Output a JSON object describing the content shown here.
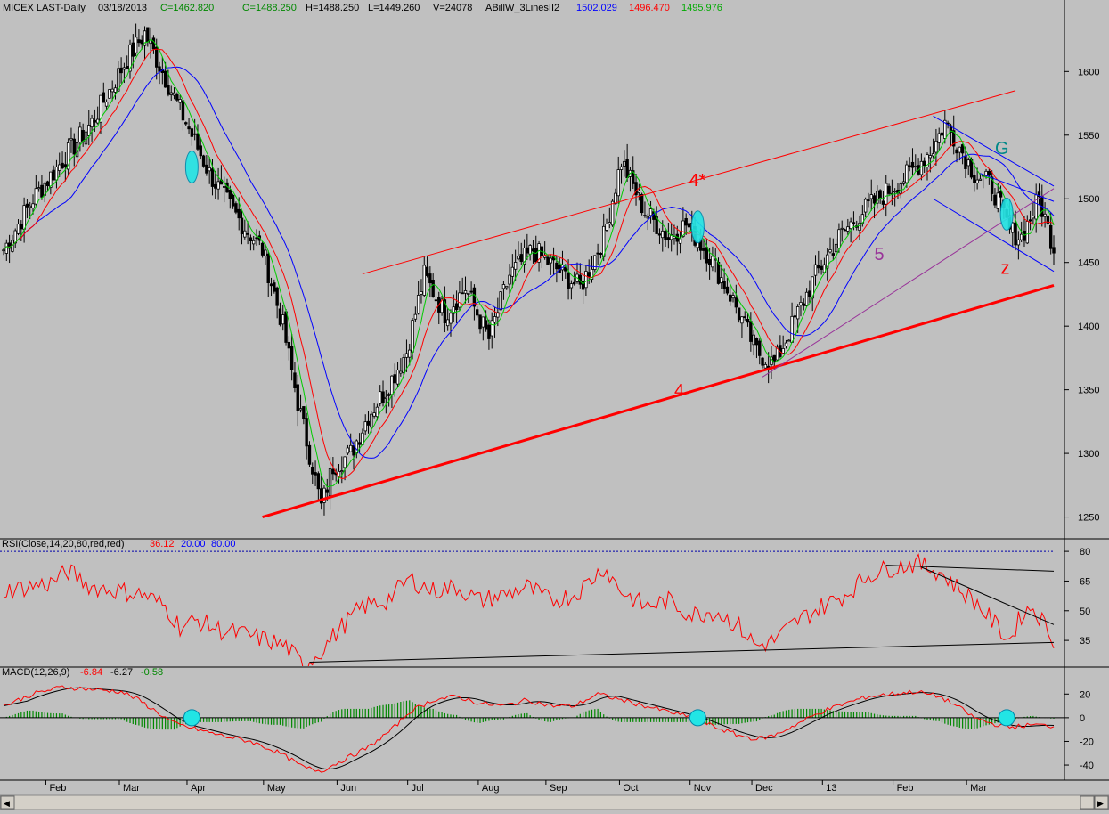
{
  "header": {
    "symbol": "MICEX LAST-Daily",
    "date": "03/18/2013",
    "close": "C=1462.820",
    "open": "O=1488.250",
    "high": "H=1488.250",
    "low": "L=1449.260",
    "volume": "V=24078",
    "indicator": "ABillW_3LinesII2",
    "v_blue": "1502.029",
    "v_red": "1496.470",
    "v_green": "1495.976"
  },
  "colors": {
    "background": "#c0c0c0",
    "panel_bg": "#c0c0c0",
    "ma_blue": "#0000ff",
    "ma_red": "#ff0000",
    "ma_green": "#00cc00",
    "candle": "#000000",
    "trend_red": "#ff0000",
    "channel_blue": "#0000ff",
    "wave_purple": "#993399",
    "highlight_cyan": "#22e5e5",
    "rsi_line": "#ff0000",
    "macd_line": "#000000",
    "signal_line": "#ff0000",
    "histogram": "#008800",
    "guide_blue": "#0000aa"
  },
  "chart_data": [
    {
      "type": "candlestick",
      "panel": "price",
      "ylim": [
        1235,
        1645
      ],
      "yticks": [
        1250,
        1300,
        1350,
        1400,
        1450,
        1500,
        1550,
        1600
      ],
      "x_tick_labels": [
        "Feb",
        "Mar",
        "Apr",
        "May",
        "Jun",
        "Jul",
        "Aug",
        "Sep",
        "Oct",
        "Nov",
        "Dec",
        "13",
        "Feb",
        "Mar"
      ],
      "price_path": [
        [
          0,
          1460
        ],
        [
          10,
          1500
        ],
        [
          20,
          1530
        ],
        [
          30,
          1560
        ],
        [
          42,
          1610
        ],
        [
          48,
          1630
        ],
        [
          55,
          1595
        ],
        [
          62,
          1560
        ],
        [
          70,
          1520
        ],
        [
          78,
          1490
        ],
        [
          88,
          1460
        ],
        [
          95,
          1400
        ],
        [
          100,
          1340
        ],
        [
          105,
          1290
        ],
        [
          108,
          1258
        ],
        [
          112,
          1290
        ],
        [
          118,
          1300
        ],
        [
          124,
          1330
        ],
        [
          130,
          1350
        ],
        [
          137,
          1380
        ],
        [
          143,
          1440
        ],
        [
          150,
          1410
        ],
        [
          157,
          1430
        ],
        [
          165,
          1390
        ],
        [
          172,
          1440
        ],
        [
          180,
          1460
        ],
        [
          188,
          1445
        ],
        [
          196,
          1430
        ],
        [
          204,
          1470
        ],
        [
          210,
          1530
        ],
        [
          218,
          1490
        ],
        [
          226,
          1470
        ],
        [
          232,
          1480
        ],
        [
          240,
          1455
        ],
        [
          248,
          1420
        ],
        [
          256,
          1380
        ],
        [
          262,
          1370
        ],
        [
          268,
          1400
        ],
        [
          276,
          1440
        ],
        [
          284,
          1470
        ],
        [
          292,
          1490
        ],
        [
          300,
          1505
        ],
        [
          308,
          1520
        ],
        [
          316,
          1540
        ],
        [
          320,
          1560
        ],
        [
          324,
          1545
        ],
        [
          330,
          1520
        ],
        [
          336,
          1510
        ],
        [
          342,
          1475
        ],
        [
          346,
          1470
        ],
        [
          352,
          1500
        ],
        [
          357,
          1462
        ]
      ],
      "ma_labels": [
        "ma-blue",
        "ma-red",
        "ma-green"
      ],
      "annotations": [
        {
          "text": "4*",
          "color": "#ff0000"
        },
        {
          "text": "4",
          "color": "#ff0000"
        },
        {
          "text": "5",
          "color": "#993399"
        },
        {
          "text": "G",
          "color": "#008888"
        },
        {
          "text": "z",
          "color": "#ff0000"
        }
      ],
      "trendlines": {
        "support_main": {
          "from": [
            88,
            1250
          ],
          "to": [
            357,
            1432
          ]
        },
        "resistance_upper": {
          "from": [
            122,
            1441
          ],
          "to": [
            344,
            1585
          ]
        },
        "channel_top": {
          "from": [
            316,
            1565
          ],
          "to": [
            357,
            1510
          ]
        },
        "channel_bottom": {
          "from": [
            316,
            1500
          ],
          "to": [
            357,
            1443
          ]
        },
        "wave_line": {
          "from": [
            258,
            1360
          ],
          "to": [
            357,
            1508
          ]
        },
        "g_triangle_top": {
          "from": [
            332,
            1520
          ],
          "to": [
            357,
            1498
          ]
        }
      },
      "highlight_ellipses": [
        {
          "x": 64,
          "y": 1525
        },
        {
          "x": 236,
          "y": 1478
        },
        {
          "x": 341,
          "y": 1488
        }
      ]
    },
    {
      "type": "line",
      "panel": "rsi",
      "title": "RSI(Close,14,20,80,red,red)",
      "values_label": [
        "36.12",
        "20.00",
        "80.00"
      ],
      "ylim": [
        22,
        85
      ],
      "yticks": [
        35,
        50,
        65,
        80
      ],
      "guides": [
        20,
        80
      ],
      "rsi_path": [
        [
          0,
          60
        ],
        [
          8,
          62
        ],
        [
          16,
          64
        ],
        [
          22,
          70
        ],
        [
          30,
          62
        ],
        [
          40,
          60
        ],
        [
          48,
          58
        ],
        [
          55,
          52
        ],
        [
          60,
          42
        ],
        [
          66,
          45
        ],
        [
          74,
          40
        ],
        [
          82,
          38
        ],
        [
          90,
          35
        ],
        [
          96,
          32
        ],
        [
          102,
          22
        ],
        [
          108,
          30
        ],
        [
          115,
          42
        ],
        [
          122,
          52
        ],
        [
          130,
          55
        ],
        [
          138,
          66
        ],
        [
          146,
          60
        ],
        [
          154,
          62
        ],
        [
          162,
          55
        ],
        [
          170,
          58
        ],
        [
          178,
          62
        ],
        [
          186,
          55
        ],
        [
          194,
          58
        ],
        [
          200,
          66
        ],
        [
          204,
          72
        ],
        [
          210,
          60
        ],
        [
          218,
          52
        ],
        [
          226,
          55
        ],
        [
          234,
          48
        ],
        [
          242,
          50
        ],
        [
          250,
          42
        ],
        [
          256,
          32
        ],
        [
          262,
          35
        ],
        [
          270,
          45
        ],
        [
          278,
          52
        ],
        [
          286,
          58
        ],
        [
          294,
          68
        ],
        [
          302,
          72
        ],
        [
          310,
          74
        ],
        [
          318,
          70
        ],
        [
          324,
          62
        ],
        [
          330,
          55
        ],
        [
          336,
          45
        ],
        [
          342,
          35
        ],
        [
          346,
          48
        ],
        [
          350,
          52
        ],
        [
          357,
          36
        ]
      ],
      "trendlines": {
        "upper_flat": {
          "from": [
            300,
            73
          ],
          "to": [
            357,
            70
          ]
        },
        "upper_down": {
          "from": [
            312,
            72
          ],
          "to": [
            357,
            43
          ]
        },
        "lower": {
          "from": [
            104,
            24
          ],
          "to": [
            357,
            34
          ]
        }
      }
    },
    {
      "type": "line",
      "panel": "macd",
      "title": "MACD(12,26,9)",
      "values_label": [
        "-6.84",
        "-6.27",
        "-0.58"
      ],
      "ylim": [
        -52,
        30
      ],
      "yticks": [
        -40,
        -20,
        0,
        20
      ],
      "macd_path": [
        [
          0,
          10
        ],
        [
          10,
          20
        ],
        [
          20,
          26
        ],
        [
          30,
          24
        ],
        [
          40,
          22
        ],
        [
          46,
          15
        ],
        [
          52,
          5
        ],
        [
          58,
          -5
        ],
        [
          66,
          -10
        ],
        [
          74,
          -15
        ],
        [
          84,
          -20
        ],
        [
          94,
          -30
        ],
        [
          102,
          -42
        ],
        [
          108,
          -45
        ],
        [
          116,
          -35
        ],
        [
          124,
          -25
        ],
        [
          132,
          -10
        ],
        [
          138,
          5
        ],
        [
          146,
          15
        ],
        [
          154,
          18
        ],
        [
          162,
          12
        ],
        [
          170,
          10
        ],
        [
          178,
          15
        ],
        [
          186,
          10
        ],
        [
          194,
          10
        ],
        [
          202,
          20
        ],
        [
          210,
          15
        ],
        [
          218,
          10
        ],
        [
          226,
          5
        ],
        [
          234,
          0
        ],
        [
          242,
          -8
        ],
        [
          250,
          -15
        ],
        [
          256,
          -18
        ],
        [
          262,
          -15
        ],
        [
          270,
          -5
        ],
        [
          278,
          5
        ],
        [
          286,
          12
        ],
        [
          294,
          18
        ],
        [
          302,
          20
        ],
        [
          310,
          22
        ],
        [
          318,
          18
        ],
        [
          324,
          10
        ],
        [
          330,
          0
        ],
        [
          336,
          -5
        ],
        [
          342,
          -8
        ],
        [
          350,
          -6
        ],
        [
          357,
          -7
        ]
      ],
      "circles": [
        64,
        236,
        341
      ]
    }
  ],
  "scrollbar": {
    "left_arrow": "◀",
    "right_arrow": "▶"
  }
}
